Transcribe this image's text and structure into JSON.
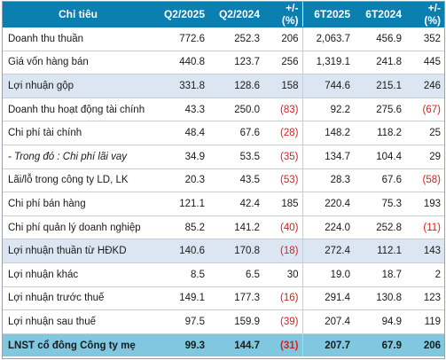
{
  "columns": [
    "Chỉ tiêu",
    "Q2/2025",
    "Q2/2024",
    "+/- (%)",
    "6T2025",
    "6T2024",
    "+/- (%)"
  ],
  "rows": [
    {
      "label": "Doanh thu thuần",
      "style": "plain",
      "cells": [
        "772.6",
        "252.3",
        "206",
        "2,063.7",
        "456.9",
        "352"
      ],
      "neg": [
        false,
        false,
        false,
        false,
        false,
        false
      ]
    },
    {
      "label": "Giá vốn hàng bán",
      "style": "plain",
      "cells": [
        "440.8",
        "123.7",
        "256",
        "1,319.1",
        "241.8",
        "445"
      ],
      "neg": [
        false,
        false,
        false,
        false,
        false,
        false
      ]
    },
    {
      "label": "Lợi nhuận gộp",
      "style": "shade",
      "cells": [
        "331.8",
        "128.6",
        "158",
        "744.6",
        "215.1",
        "246"
      ],
      "neg": [
        false,
        false,
        false,
        false,
        false,
        false
      ]
    },
    {
      "label": "Doanh thu hoạt động tài chính",
      "style": "plain",
      "cells": [
        "43.3",
        "250.0",
        "(83)",
        "92.2",
        "275.6",
        "(67)"
      ],
      "neg": [
        false,
        false,
        true,
        false,
        false,
        true
      ]
    },
    {
      "label": "Chi phí tài chính",
      "style": "plain",
      "cells": [
        "48.4",
        "67.6",
        "(28)",
        "148.2",
        "118.2",
        "25"
      ],
      "neg": [
        false,
        false,
        true,
        false,
        false,
        false
      ]
    },
    {
      "label": " - Trong đó : Chi phí lãi vay",
      "style": "italic",
      "cells": [
        "34.9",
        "53.5",
        "(35)",
        "134.7",
        "104.4",
        "29"
      ],
      "neg": [
        false,
        false,
        true,
        false,
        false,
        false
      ]
    },
    {
      "label": "Lãi/lỗ trong công ty LD, LK",
      "style": "plain",
      "cells": [
        "20.3",
        "43.5",
        "(53)",
        "28.3",
        "67.6",
        "(58)"
      ],
      "neg": [
        false,
        false,
        true,
        false,
        false,
        true
      ]
    },
    {
      "label": "Chi phí bán hàng",
      "style": "plain",
      "cells": [
        "121.1",
        "42.4",
        "185",
        "220.4",
        "75.3",
        "193"
      ],
      "neg": [
        false,
        false,
        false,
        false,
        false,
        false
      ]
    },
    {
      "label": "Chi phí quản lý doanh nghiệp",
      "style": "plain",
      "cells": [
        "85.2",
        "141.2",
        "(40)",
        "224.0",
        "252.8",
        "(11)"
      ],
      "neg": [
        false,
        false,
        true,
        false,
        false,
        true
      ]
    },
    {
      "label": "Lợi nhuận thuần từ HĐKD",
      "style": "shade",
      "cells": [
        "140.6",
        "170.8",
        "(18)",
        "272.4",
        "112.1",
        "143"
      ],
      "neg": [
        false,
        false,
        true,
        false,
        false,
        false
      ]
    },
    {
      "label": "Lợi nhuận khác",
      "style": "plain",
      "cells": [
        "8.5",
        "6.5",
        "30",
        "19.0",
        "18.7",
        "2"
      ],
      "neg": [
        false,
        false,
        false,
        false,
        false,
        false
      ]
    },
    {
      "label": "Lợi nhuận trước thuế",
      "style": "plain",
      "cells": [
        "149.1",
        "177.3",
        "(16)",
        "291.4",
        "130.8",
        "123"
      ],
      "neg": [
        false,
        false,
        true,
        false,
        false,
        false
      ]
    },
    {
      "label": "Lợi nhuận sau thuế",
      "style": "plain",
      "cells": [
        "97.5",
        "159.9",
        "(39)",
        "207.4",
        "94.9",
        "119"
      ],
      "neg": [
        false,
        false,
        true,
        false,
        false,
        false
      ]
    },
    {
      "label": "LNST cổ đông Công ty mẹ",
      "style": "total",
      "cells": [
        "99.3",
        "144.7",
        "(31)",
        "207.7",
        "67.9",
        "206"
      ],
      "neg": [
        false,
        false,
        true,
        false,
        false,
        false
      ]
    }
  ],
  "colors": {
    "header_bg": "#0b7fb0",
    "shade_bg": "#dce6f2",
    "total_bg": "#7fc8e0",
    "negative": "#e01b1b"
  }
}
